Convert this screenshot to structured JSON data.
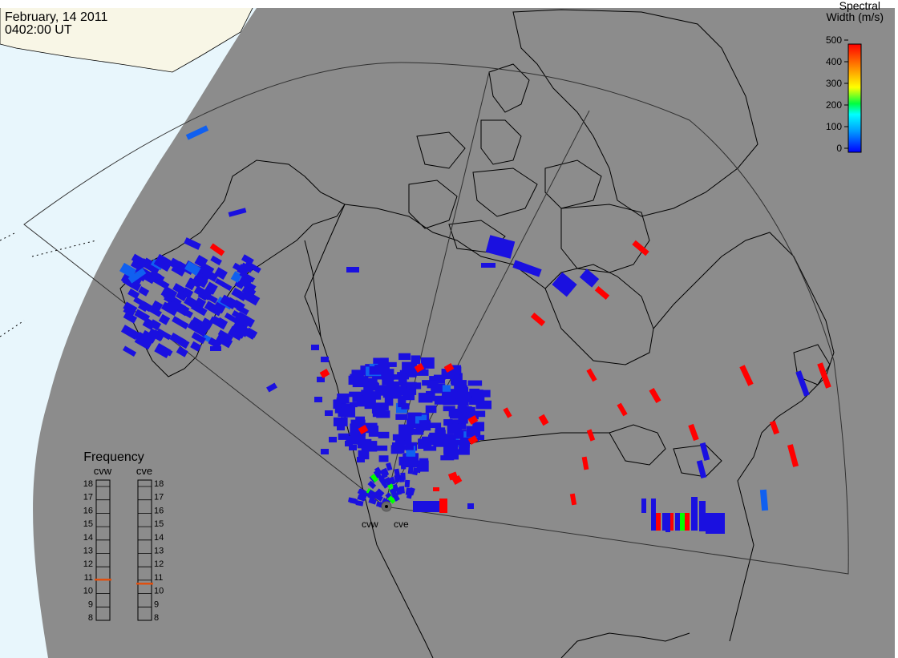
{
  "header": {
    "date": "February, 14 2011",
    "time": "0402:00 UT"
  },
  "colorbar": {
    "title_line1": "Spectral",
    "title_line2": "Width (m/s)",
    "ticks": [
      "500",
      "400",
      "300",
      "200",
      "100",
      "0"
    ],
    "colors": [
      "#ff0000",
      "#ff8000",
      "#ffff00",
      "#00ff00",
      "#00ffff",
      "#0000ff"
    ]
  },
  "frequency_panel": {
    "title": "Frequency",
    "radars": [
      "cvw",
      "cve"
    ],
    "ticks": [
      "18",
      "17",
      "16",
      "15",
      "14",
      "13",
      "12",
      "11",
      "10",
      "9",
      "8"
    ],
    "values_mhz": [
      10.8,
      10.5
    ],
    "marker_color": "#e05010"
  },
  "radar_sites": {
    "cvw_label": "cvw",
    "cve_label": "cve"
  },
  "colors": {
    "background_gray": "#8c8c8c",
    "ocean": "#e8f6fc",
    "land_outside": "#f8f6e6",
    "coastline": "#000000",
    "echo_blue": "#1a10e0",
    "echo_light_blue": "#1060f0",
    "echo_red": "#ff0000"
  }
}
